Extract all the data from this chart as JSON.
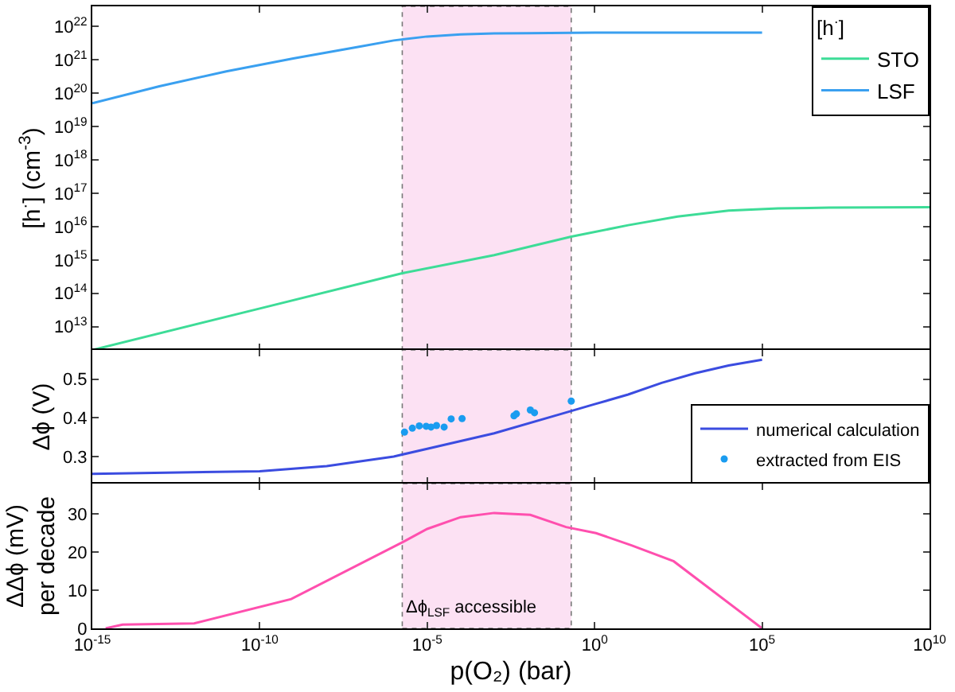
{
  "chart_data": [
    {
      "type": "line",
      "ylabel": "[h$^{·}$] (cm$^{-3}$)",
      "legend_title": "[h$^{·}$]",
      "log": "xy",
      "legend": "top right",
      "tick_labels": "y",
      "grid": false,
      "xlim": [
        1e-15,
        10000000000.0
      ],
      "xticks": [
        {
          "value": 1e-15,
          "label": null
        },
        {
          "value": 1e-10,
          "label": null
        },
        {
          "value": 1e-05,
          "label": null
        },
        {
          "value": 1,
          "label": null
        },
        {
          "value": 100000.0,
          "label": null
        },
        {
          "value": 10000000000.0,
          "label": null
        }
      ],
      "ylim": [
        2000000000000.0,
        4e+22
      ],
      "yticks": [
        {
          "value": 10000000000000.0,
          "label": "10$^{13}$"
        },
        {
          "value": 100000000000000.0,
          "label": "10$^{14}$"
        },
        {
          "value": 1000000000000000.0,
          "label": "10$^{15}$"
        },
        {
          "value": 1e+16,
          "label": "10$^{16}$"
        },
        {
          "value": 1e+17,
          "label": "10$^{17}$"
        },
        {
          "value": 1e+18,
          "label": "10$^{18}$"
        },
        {
          "value": 1e+19,
          "label": "10$^{19}$"
        },
        {
          "value": 1e+20,
          "label": "10$^{20}$"
        },
        {
          "value": 1e+21,
          "label": "10$^{21}$"
        },
        {
          "value": 1e+22,
          "label": "10$^{22}$"
        }
      ],
      "bands": [
        {
          "axis": "x",
          "from": 1.8e-06,
          "to": 0.2,
          "color": "#fce1f3"
        }
      ],
      "series": [
        {
          "name": "STO",
          "color": "#3ddc97",
          "x": [
            1e-15,
            1e-10,
            1.8e-06,
            0.001,
            0.2,
            10,
            300,
            10000.0,
            300000.0,
            10000000.0,
            10000000000.0
          ],
          "values": [
            2000000000000.0,
            35000000000000.0,
            400000000000000.0,
            1400000000000000.0,
            5000000000000000.0,
            1.1e+16,
            2e+16,
            3e+16,
            3.5e+16,
            3.7e+16,
            3.8e+16
          ]
        },
        {
          "name": "LSF",
          "color": "#3aa0f0",
          "x": [
            1e-15,
            1e-13,
            1e-11,
            1e-09,
            1e-07,
            1e-06,
            1e-05,
            0.0001,
            0.001,
            0.01,
            1,
            100000.0
          ],
          "values": [
            5e+19,
            1.6e+20,
            4.5e+20,
            1.1e+21,
            2.5e+21,
            3.8e+21,
            5e+21,
            5.8e+21,
            6.2e+21,
            6.3e+21,
            6.5e+21,
            6.5e+21
          ]
        }
      ]
    },
    {
      "type": "line",
      "ylabel": "Δϕ (V)",
      "log": "x",
      "legend": "bottom right",
      "tick_labels": "y",
      "grid": false,
      "xlim": [
        1e-15,
        10000000000.0
      ],
      "xticks": [
        {
          "value": 1e-15,
          "label": null
        },
        {
          "value": 1e-10,
          "label": null
        },
        {
          "value": 1e-05,
          "label": null
        },
        {
          "value": 1,
          "label": null
        },
        {
          "value": 100000.0,
          "label": null
        },
        {
          "value": 10000000000.0,
          "label": null
        }
      ],
      "ylim": [
        0.23,
        0.575
      ],
      "yticks": [
        0.3,
        0.4,
        0.5
      ],
      "bands": [
        {
          "axis": "x",
          "from": 1.8e-06,
          "to": 0.2,
          "color": "#fce1f3"
        }
      ],
      "series": [
        {
          "name": "numerical calculation",
          "color": "#3b4ce0",
          "x": [
            1e-15,
            1e-10,
            1e-08,
            1e-06,
            1e-05,
            0.001,
            0.1,
            1,
            10,
            100,
            1000,
            10000.0,
            100000.0
          ],
          "values": [
            0.255,
            0.262,
            0.275,
            0.3,
            0.32,
            0.36,
            0.41,
            0.435,
            0.46,
            0.49,
            0.515,
            0.535,
            0.55
          ]
        },
        {
          "name": "extracted from EIS",
          "type": "scatter",
          "marker": "circle",
          "color": "#1a9cf0",
          "x": [
            2.1e-06,
            3.6e-06,
            5.8e-06,
            9.3e-06,
            1.3e-05,
            1.9e-05,
            3.2e-05,
            5.2e-05,
            0.00011,
            0.0039,
            0.0046,
            0.012,
            0.016,
            0.2
          ],
          "values": [
            0.363,
            0.373,
            0.379,
            0.378,
            0.376,
            0.38,
            0.376,
            0.397,
            0.398,
            0.405,
            0.41,
            0.42,
            0.413,
            0.443
          ]
        }
      ]
    },
    {
      "type": "line",
      "ylabel": "ΔΔϕ (mV)\nper decade",
      "xlabel": "p(O₂) (bar)",
      "log": "x",
      "legend": false,
      "grid": false,
      "xlim": [
        1e-15,
        10000000000.0
      ],
      "xticks": [
        {
          "value": 1e-15,
          "label": "10$^{-15}$"
        },
        {
          "value": 1e-10,
          "label": "10$^{-10}$"
        },
        {
          "value": 1e-05,
          "label": "10$^{-5}$"
        },
        {
          "value": 1,
          "label": "10$^{0}$"
        },
        {
          "value": 100000.0,
          "label": "10$^{5}$"
        },
        {
          "value": 10000000000.0,
          "label": "10$^{10}$"
        }
      ],
      "ylim": [
        0,
        38
      ],
      "yticks": [
        0,
        10,
        20,
        30
      ],
      "bands": [
        {
          "axis": "x",
          "from": 1.8e-06,
          "to": 0.2,
          "color": "#fce1f3",
          "label": "Δϕ$_{LSF}$ accessible"
        }
      ],
      "series": [
        {
          "color": "#ff4fae",
          "x": [
            2.5e-15,
            8e-15,
            1.1e-12,
            8.7e-10,
            2e-06,
            1e-05,
            0.0001,
            0.001,
            0.012,
            0.14,
            1.1,
            12.6,
            230,
            100000.0
          ],
          "values": [
            0,
            1,
            1.3,
            7.7,
            22.8,
            26.1,
            29.2,
            30.3,
            29.8,
            26.6,
            25,
            21.8,
            17.6,
            0
          ]
        }
      ]
    }
  ]
}
